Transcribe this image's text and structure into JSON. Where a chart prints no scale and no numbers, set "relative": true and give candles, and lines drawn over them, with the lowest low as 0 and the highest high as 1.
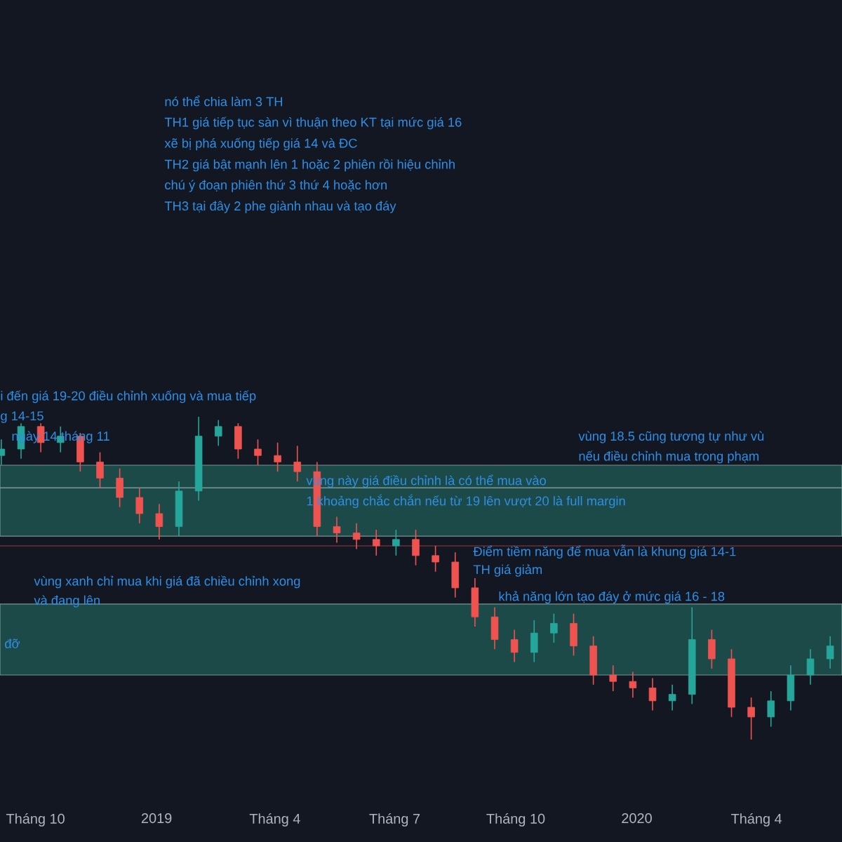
{
  "chart_data": {
    "type": "candlestick",
    "relative": true,
    "x": [
      "2018-09-05",
      "2018-09-20",
      "2018-10-05",
      "2018-10-20",
      "2018-11-04",
      "2018-11-19",
      "2018-12-04",
      "2018-12-19",
      "2019-01-03",
      "2019-01-18",
      "2019-02-02",
      "2019-02-17",
      "2019-03-04",
      "2019-03-19",
      "2019-04-03",
      "2019-04-18",
      "2019-05-03",
      "2019-05-18",
      "2019-06-02",
      "2019-06-17",
      "2019-07-02",
      "2019-07-17",
      "2019-08-01",
      "2019-08-16",
      "2019-08-31",
      "2019-09-15",
      "2019-09-30",
      "2019-10-15",
      "2019-10-30",
      "2019-11-14",
      "2019-11-29",
      "2019-12-14",
      "2019-12-29",
      "2020-01-13",
      "2020-01-28",
      "2020-02-12",
      "2020-02-27",
      "2020-03-13",
      "2020-03-28",
      "2020-04-12",
      "2020-04-27",
      "2020-05-12",
      "2020-05-27"
    ],
    "ohlc": [
      [
        0.88,
        0.93,
        0.85,
        0.9
      ],
      [
        0.9,
        0.98,
        0.87,
        0.97
      ],
      [
        0.97,
        0.98,
        0.89,
        0.92
      ],
      [
        0.92,
        0.97,
        0.89,
        0.94
      ],
      [
        0.94,
        0.95,
        0.83,
        0.86
      ],
      [
        0.86,
        0.89,
        0.78,
        0.81
      ],
      [
        0.81,
        0.84,
        0.72,
        0.75
      ],
      [
        0.75,
        0.78,
        0.67,
        0.7
      ],
      [
        0.7,
        0.73,
        0.62,
        0.66
      ],
      [
        0.66,
        0.8,
        0.63,
        0.77
      ],
      [
        0.77,
        1.0,
        0.74,
        0.94
      ],
      [
        0.94,
        0.99,
        0.91,
        0.97
      ],
      [
        0.97,
        0.98,
        0.87,
        0.9
      ],
      [
        0.9,
        0.93,
        0.85,
        0.88
      ],
      [
        0.88,
        0.92,
        0.83,
        0.86
      ],
      [
        0.86,
        0.91,
        0.8,
        0.83
      ],
      [
        0.83,
        0.86,
        0.63,
        0.66
      ],
      [
        0.66,
        0.69,
        0.61,
        0.64
      ],
      [
        0.64,
        0.67,
        0.59,
        0.62
      ],
      [
        0.62,
        0.65,
        0.57,
        0.6
      ],
      [
        0.6,
        0.65,
        0.57,
        0.62
      ],
      [
        0.62,
        0.65,
        0.54,
        0.57
      ],
      [
        0.57,
        0.6,
        0.52,
        0.55
      ],
      [
        0.55,
        0.58,
        0.44,
        0.47
      ],
      [
        0.47,
        0.5,
        0.35,
        0.38
      ],
      [
        0.38,
        0.41,
        0.28,
        0.31
      ],
      [
        0.31,
        0.34,
        0.24,
        0.27
      ],
      [
        0.27,
        0.37,
        0.24,
        0.33
      ],
      [
        0.33,
        0.39,
        0.3,
        0.36
      ],
      [
        0.36,
        0.39,
        0.26,
        0.29
      ],
      [
        0.29,
        0.32,
        0.17,
        0.2
      ],
      [
        0.2,
        0.23,
        0.15,
        0.18
      ],
      [
        0.18,
        0.21,
        0.13,
        0.16
      ],
      [
        0.16,
        0.19,
        0.09,
        0.12
      ],
      [
        0.12,
        0.17,
        0.09,
        0.14
      ],
      [
        0.14,
        0.41,
        0.11,
        0.31
      ],
      [
        0.31,
        0.34,
        0.22,
        0.25
      ],
      [
        0.25,
        0.28,
        0.07,
        0.1
      ],
      [
        0.1,
        0.13,
        0.0,
        0.07
      ],
      [
        0.07,
        0.15,
        0.04,
        0.12
      ],
      [
        0.12,
        0.23,
        0.09,
        0.2
      ],
      [
        0.2,
        0.28,
        0.17,
        0.25
      ],
      [
        0.25,
        0.32,
        0.22,
        0.29
      ]
    ],
    "colors": [
      "#26a69a",
      "#26a69a",
      "#ef5350",
      "#26a69a",
      "#ef5350",
      "#ef5350",
      "#ef5350",
      "#ef5350",
      "#ef5350",
      "#26a69a",
      "#26a69a",
      "#26a69a",
      "#ef5350",
      "#ef5350",
      "#ef5350",
      "#ef5350",
      "#ef5350",
      "#ef5350",
      "#ef5350",
      "#ef5350",
      "#26a69a",
      "#ef5350",
      "#ef5350",
      "#ef5350",
      "#ef5350",
      "#ef5350",
      "#ef5350",
      "#26a69a",
      "#26a69a",
      "#ef5350",
      "#ef5350",
      "#ef5350",
      "#ef5350",
      "#ef5350",
      "#26a69a",
      "#26a69a",
      "#ef5350",
      "#ef5350",
      "#ef5350",
      "#26a69a",
      "#26a69a",
      "#26a69a",
      "#26a69a"
    ],
    "xlim": [
      "2018-09-04",
      "2020-06-05"
    ],
    "xticks": [
      {
        "value": "2018-10-01",
        "label": "Tháng 10"
      },
      {
        "value": "2019-01-01",
        "label": "2019"
      },
      {
        "value": "2019-04-01",
        "label": "Tháng 4"
      },
      {
        "value": "2019-07-01",
        "label": "Tháng 7"
      },
      {
        "value": "2019-10-01",
        "label": "Tháng 10"
      },
      {
        "value": "2020-01-01",
        "label": "2020"
      },
      {
        "value": "2020-04-01",
        "label": "Tháng 4"
      }
    ],
    "tick_labels": "x",
    "bands": [
      {
        "axis": "y",
        "from": 0.63,
        "to": 0.85,
        "color": "#1c4a48"
      },
      {
        "axis": "y",
        "from": 0.2,
        "to": 0.42,
        "color": "#1c4a48"
      }
    ],
    "ref_lines": [
      {
        "axis": "y",
        "value": 0.78,
        "color": "#7d9a98"
      },
      {
        "axis": "y",
        "value": 0.6,
        "color": "#6b2f36"
      }
    ],
    "annotations": [
      "nó thể chia làm 3 TH",
      "TH1 giá tiếp tục sàn vì thuận theo KT tại mức giá 16",
      "xẽ bị phá xuống tiếp giá 14 và ĐC",
      "TH2 giá bật mạnh lên 1 hoặc 2 phiên rồi hiệu chỉnh",
      "chú ý đoạn phiên thứ 3 thứ 4 hoặc hơn",
      "TH3 tại đây 2 phe giành nhau và tạo đáy",
      "i đến giá 19-20 điều chỉnh xuống và mua tiếp",
      "g 14-15",
      "ngày 14 tháng 11",
      "vùng này giá điều chỉnh là có thể mua vào",
      "1 khoảng chắc chắn nếu từ 19 lên vượt 20 là full margin",
      "vùng 18.5 cũng tương tự như vù",
      "nếu điều chỉnh mua trong phạm",
      "vùng xanh chỉ mua khi giá đã chiều chỉnh xong",
      "và đang lên",
      "Điểm tiềm năng để mua vẫn là khung giá 14-1",
      "TH giá giảm",
      "khả năng lớn tạo đáy ở mức giá 16 - 18",
      "đỡ"
    ]
  }
}
